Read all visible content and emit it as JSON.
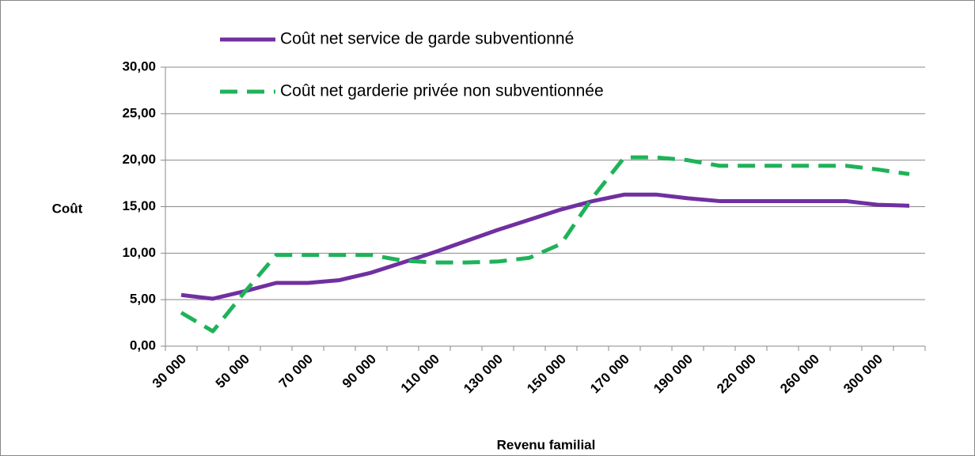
{
  "chart_data": {
    "type": "line",
    "x_label": "Revenu familial",
    "y_label": "Coût",
    "categories": [
      "30 000",
      null,
      "50 000",
      null,
      "70 000",
      null,
      "90 000",
      null,
      "110 000",
      null,
      "130 000",
      null,
      "150 000",
      null,
      "170 000",
      null,
      "190 000",
      null,
      "220 000",
      null,
      "260 000",
      null,
      "300 000",
      null
    ],
    "series": [
      {
        "name": "Coût net service de garde subventionné",
        "color": "#7030a0",
        "dash": "solid",
        "values": [
          5.5,
          5.1,
          5.9,
          6.8,
          6.8,
          7.1,
          7.9,
          9.0,
          10.1,
          11.3,
          12.5,
          13.6,
          14.7,
          15.6,
          16.3,
          16.3,
          15.9,
          15.6,
          15.6,
          15.6,
          15.6,
          15.6,
          15.2,
          15.1
        ]
      },
      {
        "name": "Coût net garderie privée non subventionnée",
        "color": "#1fb25a",
        "dash": "dashed",
        "values": [
          3.6,
          1.6,
          5.8,
          9.8,
          9.8,
          9.8,
          9.8,
          9.2,
          9.0,
          9.0,
          9.1,
          9.5,
          11.0,
          16.0,
          20.3,
          20.3,
          20.0,
          19.4,
          19.4,
          19.4,
          19.4,
          19.4,
          19.0,
          18.5
        ]
      }
    ],
    "ylim": [
      0,
      30
    ],
    "yticks": [
      {
        "value": 0,
        "label": "0,00"
      },
      {
        "value": 5,
        "label": "5,00"
      },
      {
        "value": 10,
        "label": "10,00"
      },
      {
        "value": 15,
        "label": "15,00"
      },
      {
        "value": 20,
        "label": "20,00"
      },
      {
        "value": 25,
        "label": "25,00"
      },
      {
        "value": 30,
        "label": "30,00"
      }
    ],
    "grid": true,
    "legend": "top"
  }
}
